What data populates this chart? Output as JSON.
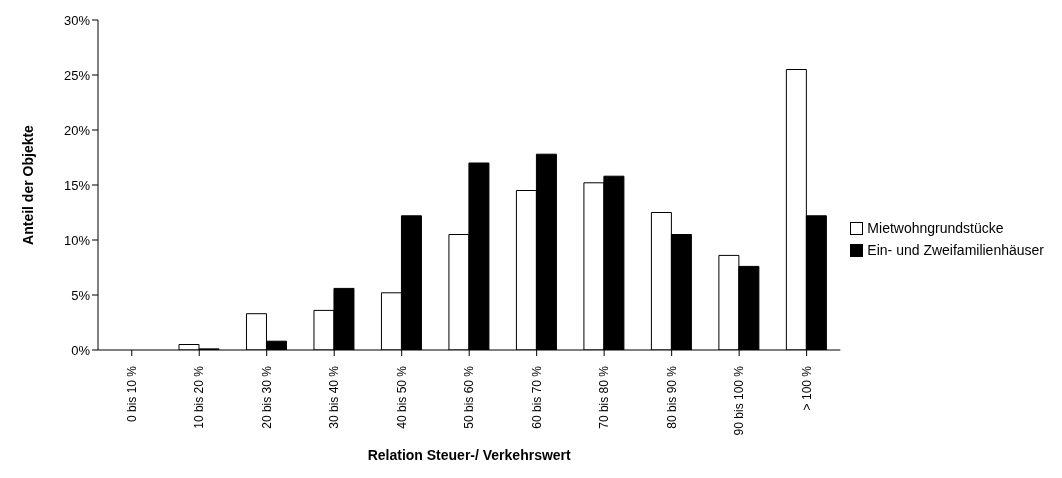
{
  "chart_data": {
    "type": "bar",
    "xlabel": "Relation Steuer-/ Verkehrswert",
    "ylabel": "Anteil der Objekte",
    "categories": [
      "0 bis 10 %",
      "10 bis 20 %",
      "20 bis 30 %",
      "30 bis 40 %",
      "40 bis 50 %",
      "50 bis 60 %",
      "60 bis 70 %",
      "70 bis 80 %",
      "80 bis 90 %",
      "90 bis 100 %",
      "> 100 %"
    ],
    "series": [
      {
        "name": "Mietwohngrundstücke",
        "color": "#ffffff",
        "values": [
          0,
          0.5,
          3.3,
          3.6,
          5.2,
          10.5,
          14.5,
          15.2,
          12.5,
          8.6,
          25.5
        ]
      },
      {
        "name": "Ein- und Zweifamilienhäuser",
        "color": "#000000",
        "values": [
          0,
          0.1,
          0.8,
          5.6,
          12.2,
          17.0,
          17.8,
          15.8,
          10.5,
          7.6,
          12.2
        ]
      }
    ],
    "ylim": [
      0,
      30
    ],
    "yticks": [
      {
        "value": 0,
        "label": "0%"
      },
      {
        "value": 5,
        "label": "5%"
      },
      {
        "value": 10,
        "label": "10%"
      },
      {
        "value": 15,
        "label": "15%"
      },
      {
        "value": 20,
        "label": "20%"
      },
      {
        "value": 25,
        "label": "25%"
      },
      {
        "value": 30,
        "label": "30%"
      }
    ],
    "grid": false,
    "legend": "right"
  }
}
